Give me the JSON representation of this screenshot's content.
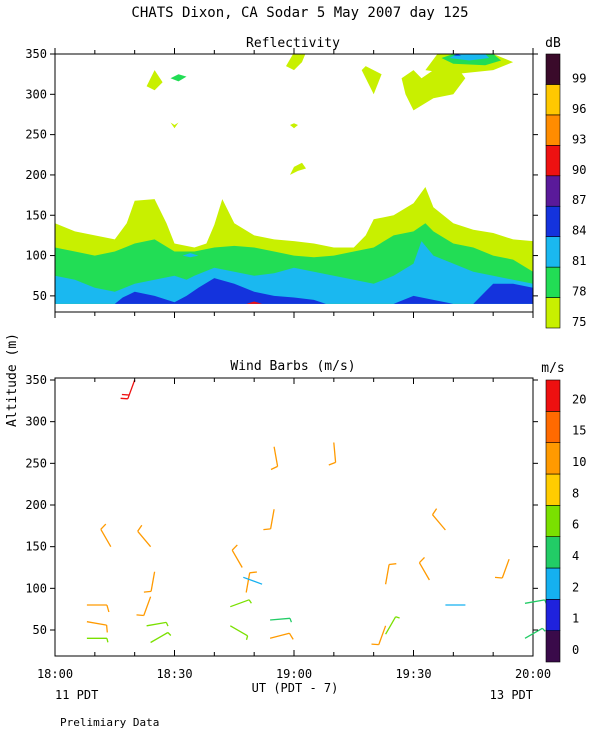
{
  "title": "CHATS Dixon, CA  Sodar    5 May 2007  day 125",
  "footer_note": "Prelimiary Data",
  "shared_axes": {
    "ylabel": "Altitude (m)",
    "xlabel": "UT  (PDT - 7)",
    "x_ticks": [
      "18:00",
      "18:30",
      "19:00",
      "19:30",
      "20:00"
    ],
    "x_left_note": "11 PDT",
    "x_right_note": "13 PDT"
  },
  "chart_data": [
    {
      "type": "heatmap",
      "title": "Reflectivity",
      "colorbar_unit": "dB",
      "xlim": [
        "18:00",
        "20:00"
      ],
      "ylim": [
        30,
        350
      ],
      "yticks": [
        50,
        100,
        150,
        200,
        250,
        300,
        350
      ],
      "levels": [
        {
          "label": "75",
          "color": "#c8f000"
        },
        {
          "label": "78",
          "color": "#22dd55"
        },
        {
          "label": "81",
          "color": "#1ab8f0"
        },
        {
          "label": "84",
          "color": "#1433dd"
        },
        {
          "label": "87",
          "color": "#5a1a9a"
        },
        {
          "label": "90",
          "color": "#ee1111"
        },
        {
          "label": "93",
          "color": "#ff8c00"
        },
        {
          "label": "96",
          "color": "#ffc800"
        },
        {
          "label": "99",
          "color": "#3a0a2a"
        }
      ],
      "contours": [
        {
          "level": 0,
          "points": [
            [
              0,
              40
            ],
            [
              0,
              140
            ],
            [
              5,
              130
            ],
            [
              10,
              125
            ],
            [
              15,
              120
            ],
            [
              18,
              140
            ],
            [
              20,
              168
            ],
            [
              25,
              170
            ],
            [
              28,
              140
            ],
            [
              30,
              115
            ],
            [
              35,
              110
            ],
            [
              38,
              115
            ],
            [
              40,
              138
            ],
            [
              42,
              170
            ],
            [
              45,
              140
            ],
            [
              50,
              125
            ],
            [
              55,
              120
            ],
            [
              60,
              118
            ],
            [
              65,
              115
            ],
            [
              70,
              110
            ],
            [
              75,
              110
            ],
            [
              78,
              125
            ],
            [
              80,
              145
            ],
            [
              85,
              150
            ],
            [
              90,
              165
            ],
            [
              93,
              185
            ],
            [
              95,
              160
            ],
            [
              100,
              140
            ],
            [
              105,
              132
            ],
            [
              110,
              128
            ],
            [
              115,
              120
            ],
            [
              120,
              118
            ],
            [
              120,
              40
            ]
          ]
        },
        {
          "level": 0,
          "points": [
            [
              77,
              330
            ],
            [
              80,
              300
            ],
            [
              82,
              325
            ],
            [
              78,
              335
            ]
          ]
        },
        {
          "level": 0,
          "points": [
            [
              87,
              320
            ],
            [
              90,
              330
            ],
            [
              92,
              320
            ],
            [
              95,
              330
            ],
            [
              100,
              340
            ],
            [
              103,
              320
            ],
            [
              100,
              300
            ],
            [
              95,
              295
            ],
            [
              90,
              280
            ],
            [
              88,
              300
            ]
          ]
        },
        {
          "level": 0,
          "points": [
            [
              93,
              330
            ],
            [
              96,
              350
            ],
            [
              110,
              350
            ],
            [
              115,
              340
            ],
            [
              110,
              330
            ],
            [
              100,
              325
            ]
          ]
        },
        {
          "level": 0,
          "points": [
            [
              23,
              310
            ],
            [
              25,
              330
            ],
            [
              27,
              315
            ],
            [
              25,
              305
            ]
          ]
        },
        {
          "level": 0,
          "points": [
            [
              58,
              335
            ],
            [
              60,
              352
            ],
            [
              63,
              352
            ],
            [
              62,
              340
            ],
            [
              60,
              330
            ]
          ]
        },
        {
          "level": 0,
          "points": [
            [
              29,
              265
            ],
            [
              30,
              262
            ],
            [
              31,
              265
            ],
            [
              30,
              258
            ]
          ]
        },
        {
          "level": 0,
          "points": [
            [
              59,
              262
            ],
            [
              60,
              258
            ],
            [
              61,
              262
            ],
            [
              60,
              264
            ]
          ]
        },
        {
          "level": 0,
          "points": [
            [
              59,
              200
            ],
            [
              60,
              210
            ],
            [
              62,
              215
            ],
            [
              63,
              208
            ],
            [
              61,
              205
            ]
          ]
        },
        {
          "level": 1,
          "points": [
            [
              0,
              40
            ],
            [
              0,
              110
            ],
            [
              5,
              105
            ],
            [
              10,
              100
            ],
            [
              15,
              105
            ],
            [
              20,
              115
            ],
            [
              25,
              120
            ],
            [
              30,
              105
            ],
            [
              35,
              105
            ],
            [
              40,
              110
            ],
            [
              45,
              112
            ],
            [
              50,
              110
            ],
            [
              55,
              105
            ],
            [
              60,
              100
            ],
            [
              65,
              98
            ],
            [
              70,
              100
            ],
            [
              75,
              105
            ],
            [
              80,
              110
            ],
            [
              85,
              125
            ],
            [
              90,
              130
            ],
            [
              93,
              140
            ],
            [
              95,
              130
            ],
            [
              100,
              115
            ],
            [
              105,
              110
            ],
            [
              110,
              100
            ],
            [
              115,
              95
            ],
            [
              120,
              80
            ],
            [
              120,
              40
            ]
          ]
        },
        {
          "level": 1,
          "points": [
            [
              97,
              345
            ],
            [
              100,
              350
            ],
            [
              110,
              350
            ],
            [
              112,
              342
            ],
            [
              108,
              336
            ],
            [
              100,
              338
            ]
          ]
        },
        {
          "level": 1,
          "points": [
            [
              29,
              320
            ],
            [
              31,
              325
            ],
            [
              33,
              322
            ],
            [
              31,
              316
            ]
          ]
        },
        {
          "level": 2,
          "points": [
            [
              0,
              40
            ],
            [
              0,
              75
            ],
            [
              5,
              70
            ],
            [
              10,
              60
            ],
            [
              15,
              55
            ],
            [
              20,
              65
            ],
            [
              25,
              70
            ],
            [
              30,
              75
            ],
            [
              33,
              70
            ],
            [
              35,
              75
            ],
            [
              40,
              85
            ],
            [
              45,
              80
            ],
            [
              50,
              75
            ],
            [
              55,
              78
            ],
            [
              60,
              85
            ],
            [
              65,
              80
            ],
            [
              70,
              75
            ],
            [
              75,
              70
            ],
            [
              80,
              65
            ],
            [
              85,
              75
            ],
            [
              90,
              90
            ],
            [
              92,
              118
            ],
            [
              95,
              100
            ],
            [
              100,
              90
            ],
            [
              105,
              80
            ],
            [
              110,
              75
            ],
            [
              115,
              70
            ],
            [
              120,
              65
            ],
            [
              120,
              40
            ]
          ]
        },
        {
          "level": 2,
          "points": [
            [
              99,
              345
            ],
            [
              101,
              350
            ],
            [
              108,
              350
            ],
            [
              109,
              345
            ],
            [
              104,
              342
            ]
          ]
        },
        {
          "level": 2,
          "points": [
            [
              32,
              100
            ],
            [
              34,
              103
            ],
            [
              36,
              100
            ],
            [
              34,
              98
            ]
          ]
        },
        {
          "level": 3,
          "points": [
            [
              15,
              40
            ],
            [
              17,
              48
            ],
            [
              20,
              55
            ],
            [
              25,
              50
            ],
            [
              30,
              42
            ],
            [
              33,
              50
            ],
            [
              36,
              60
            ],
            [
              40,
              72
            ],
            [
              45,
              65
            ],
            [
              50,
              55
            ],
            [
              55,
              50
            ],
            [
              60,
              48
            ],
            [
              65,
              45
            ],
            [
              68,
              40
            ]
          ]
        },
        {
          "level": 3,
          "points": [
            [
              85,
              40
            ],
            [
              90,
              50
            ],
            [
              95,
              45
            ],
            [
              100,
              40
            ]
          ]
        },
        {
          "level": 3,
          "points": [
            [
              105,
              40
            ],
            [
              108,
              55
            ],
            [
              110,
              65
            ],
            [
              115,
              65
            ],
            [
              120,
              60
            ],
            [
              120,
              40
            ]
          ]
        },
        {
          "level": 3,
          "points": [
            [
              100,
              348
            ],
            [
              101,
              350
            ],
            [
              102,
              348
            ]
          ]
        },
        {
          "level": 5,
          "points": [
            [
              48,
              40
            ],
            [
              50,
              43
            ],
            [
              52,
              40
            ]
          ]
        }
      ],
      "colorbar_id": "reflectivity-colorbar"
    },
    {
      "type": "scatter",
      "title": "Wind Barbs (m/s)",
      "colorbar_unit": "m/s",
      "xlim": [
        "18:00",
        "20:00"
      ],
      "ylim": [
        20,
        360
      ],
      "yticks": [
        50,
        100,
        150,
        200,
        250,
        300,
        350
      ],
      "speed_levels": [
        {
          "label": "0",
          "color": "#3a0a4a"
        },
        {
          "label": "1",
          "color": "#1f22dd"
        },
        {
          "label": "2",
          "color": "#15b0f0"
        },
        {
          "label": "4",
          "color": "#22cc66"
        },
        {
          "label": "6",
          "color": "#7ae000"
        },
        {
          "label": "8",
          "color": "#ffcc00"
        },
        {
          "label": "10",
          "color": "#ff9a00"
        },
        {
          "label": "15",
          "color": "#ff6a00"
        },
        {
          "label": "20",
          "color": "#ee1010"
        }
      ],
      "barbs": [
        {
          "time": "18:20",
          "altitude": 350,
          "speed": 20,
          "direction_deg": 200
        },
        {
          "time": "18:55",
          "altitude": 270,
          "speed": 10,
          "direction_deg": 170
        },
        {
          "time": "19:10",
          "altitude": 275,
          "speed": 10,
          "direction_deg": 175
        },
        {
          "time": "18:55",
          "altitude": 195,
          "speed": 10,
          "direction_deg": 190
        },
        {
          "time": "19:38",
          "altitude": 170,
          "speed": 10,
          "direction_deg": 320
        },
        {
          "time": "18:14",
          "altitude": 150,
          "speed": 10,
          "direction_deg": 330
        },
        {
          "time": "18:24",
          "altitude": 150,
          "speed": 10,
          "direction_deg": 320
        },
        {
          "time": "18:25",
          "altitude": 120,
          "speed": 10,
          "direction_deg": 190
        },
        {
          "time": "18:24",
          "altitude": 90,
          "speed": 10,
          "direction_deg": 200
        },
        {
          "time": "18:47",
          "altitude": 125,
          "speed": 10,
          "direction_deg": 330
        },
        {
          "time": "18:48",
          "altitude": 95,
          "speed": 10,
          "direction_deg": 10
        },
        {
          "time": "19:23",
          "altitude": 105,
          "speed": 10,
          "direction_deg": 10
        },
        {
          "time": "19:34",
          "altitude": 110,
          "speed": 10,
          "direction_deg": 330
        },
        {
          "time": "19:54",
          "altitude": 135,
          "speed": 10,
          "direction_deg": 200
        },
        {
          "time": "18:08",
          "altitude": 80,
          "speed": 10,
          "direction_deg": 90
        },
        {
          "time": "18:08",
          "altitude": 60,
          "speed": 10,
          "direction_deg": 100
        },
        {
          "time": "18:08",
          "altitude": 40,
          "speed": 6,
          "direction_deg": 90
        },
        {
          "time": "18:23",
          "altitude": 55,
          "speed": 6,
          "direction_deg": 80
        },
        {
          "time": "18:24",
          "altitude": 35,
          "speed": 6,
          "direction_deg": 60
        },
        {
          "time": "18:44",
          "altitude": 78,
          "speed": 6,
          "direction_deg": 70
        },
        {
          "time": "18:44",
          "altitude": 55,
          "speed": 6,
          "direction_deg": 120
        },
        {
          "time": "18:52",
          "altitude": 105,
          "speed": 2,
          "direction_deg": 290
        },
        {
          "time": "18:54",
          "altitude": 62,
          "speed": 4,
          "direction_deg": 85
        },
        {
          "time": "18:54",
          "altitude": 40,
          "speed": 10,
          "direction_deg": 75
        },
        {
          "time": "19:23",
          "altitude": 55,
          "speed": 10,
          "direction_deg": 200
        },
        {
          "time": "19:23",
          "altitude": 45,
          "speed": 6,
          "direction_deg": 30
        },
        {
          "time": "19:38",
          "altitude": 80,
          "speed": 2,
          "direction_deg": 90
        },
        {
          "time": "19:58",
          "altitude": 82,
          "speed": 4,
          "direction_deg": 80
        },
        {
          "time": "19:58",
          "altitude": 40,
          "speed": 4,
          "direction_deg": 60
        }
      ]
    }
  ]
}
